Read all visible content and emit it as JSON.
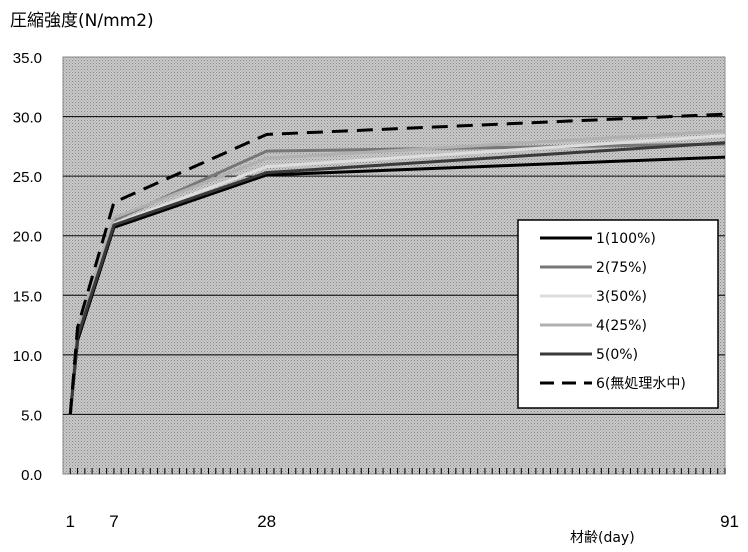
{
  "chart_data": {
    "type": "line",
    "ylabel": "圧縮強度(N/mm2)",
    "xlabel": "材齢(day)",
    "x": [
      1,
      2,
      7,
      28,
      91
    ],
    "xticklabels": [
      "1",
      "7",
      "28",
      "91"
    ],
    "ylim": [
      0,
      35
    ],
    "yticks": [
      "0.0",
      "5.0",
      "10.0",
      "15.0",
      "20.0",
      "25.0",
      "30.0",
      "35.0"
    ],
    "grid": true,
    "legend_position": "right",
    "series": [
      {
        "name": "1(100%)",
        "values": [
          5.0,
          11.2,
          20.7,
          25.1,
          26.6
        ],
        "color": "#000000",
        "dash": "solid",
        "width": 3
      },
      {
        "name": "2(75%)",
        "values": [
          5.0,
          11.8,
          21.3,
          27.1,
          27.7
        ],
        "color": "#777777",
        "dash": "solid",
        "width": 3
      },
      {
        "name": "3(50%)",
        "values": [
          5.0,
          12.0,
          21.0,
          25.8,
          28.4
        ],
        "color": "#dddddd",
        "dash": "solid",
        "width": 3
      },
      {
        "name": "4(25%)",
        "values": [
          5.0,
          12.2,
          21.5,
          26.5,
          28.8
        ],
        "color": "#b0b0b0",
        "dash": "solid",
        "width": 3
      },
      {
        "name": "5(0%)",
        "values": [
          5.0,
          11.5,
          20.9,
          25.3,
          27.8
        ],
        "color": "#3a3a3a",
        "dash": "solid",
        "width": 3
      },
      {
        "name": "6(無処理水中)",
        "values": [
          5.0,
          12.3,
          22.8,
          28.5,
          30.2
        ],
        "color": "#000000",
        "dash": "dashed",
        "width": 3
      }
    ]
  }
}
